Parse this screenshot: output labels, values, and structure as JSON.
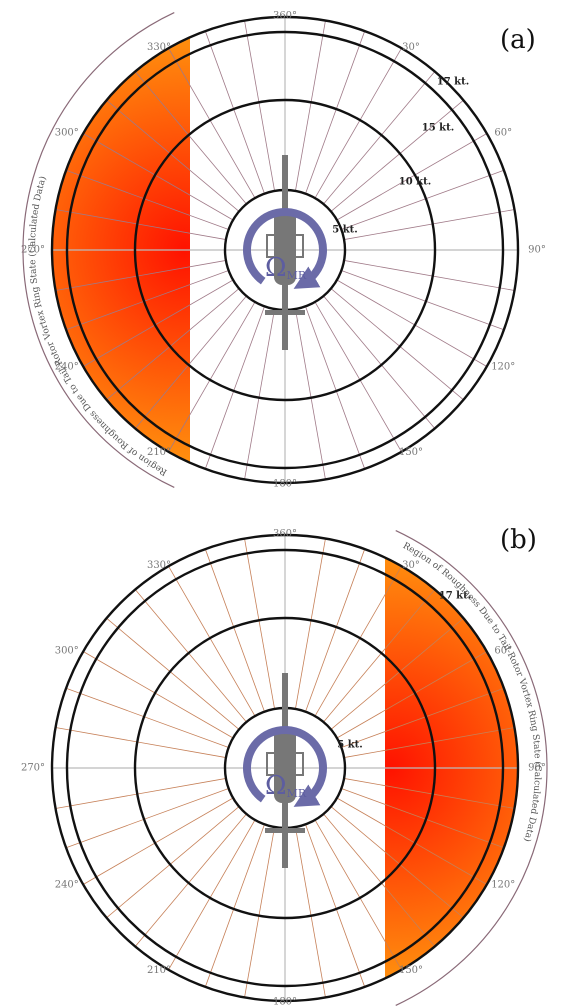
{
  "panels": [
    {
      "label": "(a)",
      "angle_labels": [
        "360°",
        "30°",
        "60°",
        "90°",
        "120°",
        "150°",
        "180°",
        "210°",
        "240°",
        "270°",
        "300°",
        "330°"
      ],
      "speed_labels": [
        "17 kt.",
        "15 kt.",
        "10 kt.",
        "5 kt."
      ],
      "annotation": "Region of Roughness Due to Tail-Rotor Vortex Ring State (Calculated Data)",
      "rotor_symbol": "Ω",
      "rotor_subscript": "MR"
    },
    {
      "label": "(b)",
      "angle_labels": [
        "360°",
        "30°",
        "60°",
        "90°",
        "120°",
        "150°",
        "180°",
        "210°",
        "240°",
        "270°",
        "300°",
        "330°"
      ],
      "speed_labels": [
        "17 kt.",
        "5 kt."
      ],
      "annotation": "Region of Roughness Due to Tail-Rotor Vortex Ring State (Calculated Data)",
      "rotor_symbol": "Ω",
      "rotor_subscript": "MR"
    }
  ]
}
